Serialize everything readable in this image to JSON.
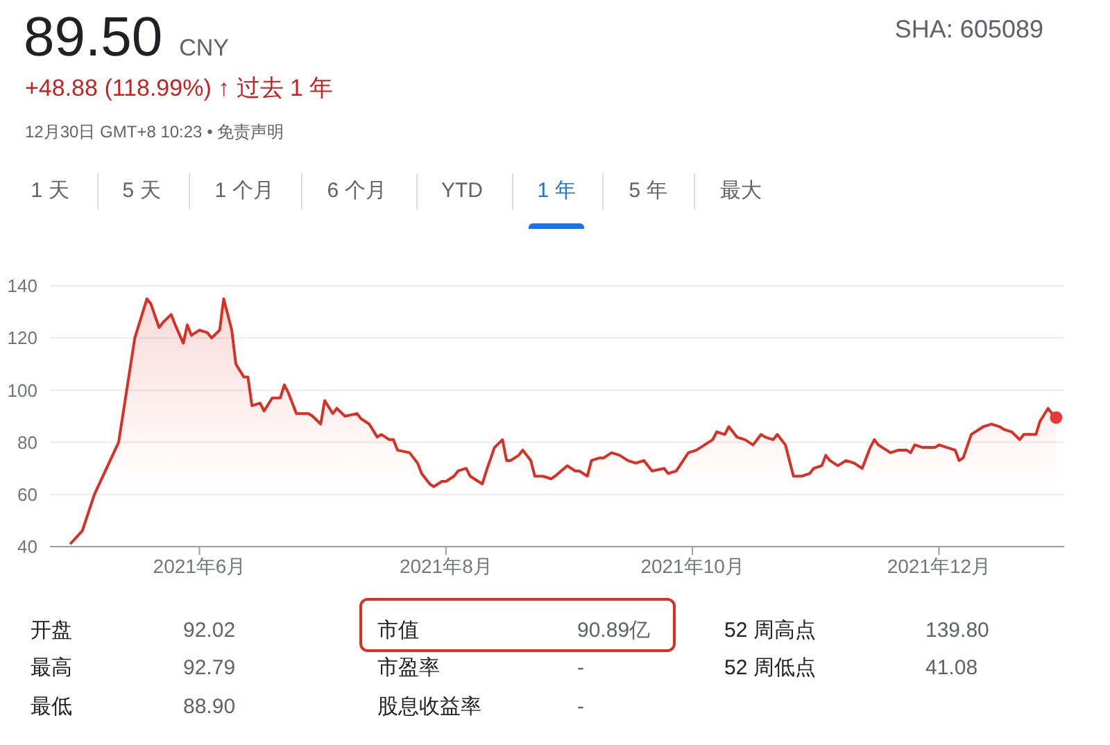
{
  "chart_data": {
    "type": "area",
    "title": "89.50 CNY",
    "subtitle": "+48.88 (118.99%) ↑ 过去 1 年",
    "annotations": [
      "12月30日 GMT+8 10:23 • 免责声明",
      "SHA: 605089",
      "1 天",
      "5 天",
      "1 个月",
      "6 个月",
      "YTD",
      "1 年",
      "5 年",
      "最大",
      "开盘",
      "92.02",
      "市值",
      "90.89亿",
      "52 周高点",
      "139.80",
      "最高",
      "92.79",
      "市盈率",
      "-",
      "52 周低点",
      "41.08",
      "最低",
      "88.90",
      "股息收益率",
      "-"
    ],
    "x": [
      "2021-04-30",
      "2021-05-03",
      "2021-05-06",
      "2021-05-09",
      "2021-05-12",
      "2021-05-14",
      "2021-05-16",
      "2021-05-19",
      "2021-05-20",
      "2021-05-22",
      "2021-05-23",
      "2021-05-25",
      "2021-05-26",
      "2021-05-28",
      "2021-05-29",
      "2021-05-30",
      "2021-06-01",
      "2021-06-03",
      "2021-06-04",
      "2021-06-06",
      "2021-06-07",
      "2021-06-09",
      "2021-06-10",
      "2021-06-12",
      "2021-06-13",
      "2021-06-14",
      "2021-06-16",
      "2021-06-17",
      "2021-06-19",
      "2021-06-21",
      "2021-06-22",
      "2021-06-23",
      "2021-06-25",
      "2021-06-28",
      "2021-06-29",
      "2021-07-01",
      "2021-07-02",
      "2021-07-04",
      "2021-07-05",
      "2021-07-07",
      "2021-07-10",
      "2021-07-11",
      "2021-07-13",
      "2021-07-15",
      "2021-07-16",
      "2021-07-18",
      "2021-07-19",
      "2021-07-20",
      "2021-07-23",
      "2021-07-25",
      "2021-07-26",
      "2021-07-28",
      "2021-07-29",
      "2021-07-31",
      "2021-08-01",
      "2021-08-03",
      "2021-08-04",
      "2021-08-06",
      "2021-08-07",
      "2021-08-09",
      "2021-08-10",
      "2021-08-11",
      "2021-08-13",
      "2021-08-15",
      "2021-08-16",
      "2021-08-17",
      "2021-08-19",
      "2021-08-20",
      "2021-08-22",
      "2021-08-23",
      "2021-08-25",
      "2021-08-27",
      "2021-08-28",
      "2021-08-31",
      "2021-09-02",
      "2021-09-03",
      "2021-09-05",
      "2021-09-06",
      "2021-09-08",
      "2021-09-09",
      "2021-09-11",
      "2021-09-13",
      "2021-09-15",
      "2021-09-17",
      "2021-09-19",
      "2021-09-21",
      "2021-09-24",
      "2021-09-25",
      "2021-09-27",
      "2021-09-30",
      "2021-10-02",
      "2021-10-04",
      "2021-10-06",
      "2021-10-07",
      "2021-10-09",
      "2021-10-10",
      "2021-10-12",
      "2021-10-14",
      "2021-10-16",
      "2021-10-18",
      "2021-10-19",
      "2021-10-21",
      "2021-10-22",
      "2021-10-24",
      "2021-10-25",
      "2021-10-26",
      "2021-10-28",
      "2021-10-30",
      "2021-10-31",
      "2021-11-02",
      "2021-11-03",
      "2021-11-04",
      "2021-11-06",
      "2021-11-08",
      "2021-11-10",
      "2021-11-12",
      "2021-11-14",
      "2021-11-15",
      "2021-11-16",
      "2021-11-19",
      "2021-11-21",
      "2021-11-23",
      "2021-11-24",
      "2021-11-25",
      "2021-11-27",
      "2021-11-29",
      "2021-11-30",
      "2021-12-01",
      "2021-12-03",
      "2021-12-05",
      "2021-12-06",
      "2021-12-07",
      "2021-12-09",
      "2021-12-11",
      "2021-12-12",
      "2021-12-14",
      "2021-12-16",
      "2021-12-17",
      "2021-12-19",
      "2021-12-21",
      "2021-12-22",
      "2021-12-25",
      "2021-12-26",
      "2021-12-28",
      "2021-12-29",
      "2021-12-30"
    ],
    "series": [
      {
        "color": "#d93025",
        "values": [
          41,
          46,
          60,
          70,
          80,
          100,
          120,
          135,
          133,
          124,
          126,
          129,
          125,
          118,
          125,
          121,
          123,
          122,
          120,
          123,
          135,
          123,
          110,
          105,
          105,
          94,
          95,
          92,
          97,
          97,
          102,
          99,
          91,
          91,
          90,
          87,
          96,
          91,
          93,
          90,
          91,
          89,
          87,
          82,
          83,
          81,
          81,
          77,
          76,
          72,
          68,
          64,
          63,
          65,
          65,
          67,
          69,
          70,
          67,
          65,
          64,
          69,
          78,
          81,
          73,
          73,
          75,
          77,
          73,
          67,
          67,
          66,
          67,
          71,
          69,
          69,
          67,
          73,
          74,
          74,
          76,
          75,
          73,
          72,
          73,
          69,
          70,
          68,
          69,
          76,
          77,
          79,
          81,
          84,
          83,
          86,
          82,
          81,
          79,
          83,
          82,
          81,
          83,
          79,
          73,
          67,
          67,
          68,
          70,
          71,
          75,
          73,
          71,
          73,
          72,
          70,
          78,
          81,
          79,
          76,
          77,
          77,
          76,
          79,
          78,
          78,
          78,
          79,
          78,
          77,
          73,
          74,
          83,
          85,
          86,
          87,
          86,
          85,
          84,
          81,
          83,
          83,
          88,
          93,
          91,
          89.5
        ]
      },
      {
        "type": "scatter",
        "marker": "circle",
        "color": "#e53935",
        "x": [
          "2021-12-30"
        ],
        "values": [
          89.5
        ]
      }
    ],
    "xlim": [
      "2021-04-25",
      "2022-01-01"
    ],
    "xticks": [
      {
        "value": "2021-06-01",
        "label": "2021年6月"
      },
      {
        "value": "2021-08-01",
        "label": "2021年8月"
      },
      {
        "value": "2021-10-01",
        "label": "2021年10月"
      },
      {
        "value": "2021-12-01",
        "label": "2021年12月"
      }
    ],
    "ylim": [
      40,
      140
    ],
    "yticks": [
      40,
      60,
      80,
      100,
      120,
      140
    ],
    "grid": "y"
  }
}
